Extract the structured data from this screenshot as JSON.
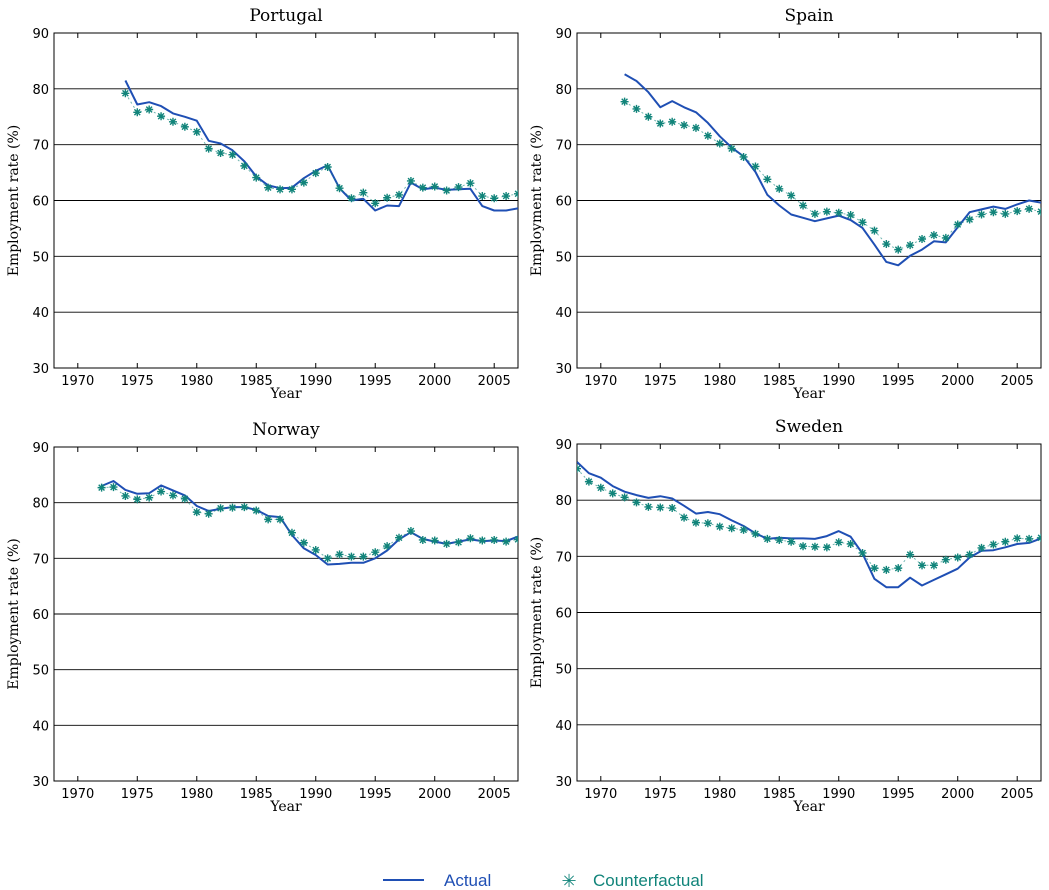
{
  "colors": {
    "actual": "#1f4fb4",
    "counterfactual": "#11847a",
    "grid": "#000000"
  },
  "legend": {
    "actual_label": "Actual",
    "counterfactual_label": "Counterfactual"
  },
  "chart_data": [
    {
      "type": "line",
      "title": "Portugal",
      "xlabel": "Year",
      "ylabel": "Employment rate (%)",
      "xlim": [
        1968,
        2007
      ],
      "ylim": [
        30,
        90
      ],
      "xticks": [
        1970,
        1975,
        1980,
        1985,
        1990,
        1995,
        2000,
        2005
      ],
      "yticks": [
        30,
        40,
        50,
        60,
        70,
        80,
        90
      ],
      "grid": "horizontal",
      "series": [
        {
          "name": "Actual",
          "style": "line",
          "x": [
            1974,
            1975,
            1976,
            1977,
            1978,
            1979,
            1980,
            1981,
            1982,
            1983,
            1984,
            1985,
            1986,
            1987,
            1988,
            1989,
            1990,
            1991,
            1992,
            1993,
            1994,
            1995,
            1996,
            1997,
            1998,
            1999,
            2000,
            2001,
            2002,
            2003,
            2004,
            2005,
            2006,
            2007
          ],
          "y": [
            81.5,
            77.2,
            77.6,
            76.9,
            75.6,
            75.0,
            74.3,
            70.7,
            70.2,
            69.0,
            67.0,
            64.3,
            62.7,
            62.2,
            62.3,
            64.0,
            65.3,
            66.3,
            62.2,
            60.0,
            60.3,
            58.2,
            59.1,
            59.0,
            63.2,
            62.0,
            62.3,
            61.9,
            62.0,
            62.1,
            59.0,
            58.2,
            58.2,
            58.6
          ]
        },
        {
          "name": "Counterfactual",
          "style": "markers",
          "x": [
            1974,
            1975,
            1976,
            1977,
            1978,
            1979,
            1980,
            1981,
            1982,
            1983,
            1984,
            1985,
            1986,
            1987,
            1988,
            1989,
            1990,
            1991,
            1992,
            1993,
            1994,
            1995,
            1996,
            1997,
            1998,
            1999,
            2000,
            2001,
            2002,
            2003,
            2004,
            2005,
            2006,
            2007
          ],
          "y": [
            79.2,
            75.8,
            76.3,
            75.1,
            74.1,
            73.2,
            72.3,
            69.3,
            68.5,
            68.2,
            66.2,
            64.1,
            62.3,
            62.0,
            62.0,
            63.2,
            64.9,
            66.0,
            62.2,
            60.4,
            61.4,
            59.5,
            60.5,
            61.0,
            63.5,
            62.3,
            62.5,
            61.8,
            62.4,
            63.1,
            60.8,
            60.4,
            60.8,
            61.2
          ]
        }
      ]
    },
    {
      "type": "line",
      "title": "Spain",
      "xlabel": "Year",
      "ylabel": "Employment rate (%)",
      "xlim": [
        1968,
        2007
      ],
      "ylim": [
        30,
        90
      ],
      "xticks": [
        1970,
        1975,
        1980,
        1985,
        1990,
        1995,
        2000,
        2005
      ],
      "yticks": [
        30,
        40,
        50,
        60,
        70,
        80,
        90
      ],
      "grid": "horizontal",
      "series": [
        {
          "name": "Actual",
          "style": "line",
          "x": [
            1972,
            1973,
            1974,
            1975,
            1976,
            1977,
            1978,
            1979,
            1980,
            1981,
            1982,
            1983,
            1984,
            1985,
            1986,
            1987,
            1988,
            1989,
            1990,
            1991,
            1992,
            1993,
            1994,
            1995,
            1996,
            1997,
            1998,
            1999,
            2000,
            2001,
            2002,
            2003,
            2004,
            2005,
            2006,
            2007
          ],
          "y": [
            82.6,
            81.4,
            79.4,
            76.7,
            77.8,
            76.7,
            75.8,
            73.9,
            71.5,
            69.5,
            67.9,
            65.1,
            61.0,
            59.1,
            57.5,
            56.9,
            56.3,
            56.8,
            57.3,
            56.5,
            55.1,
            52.1,
            49.0,
            48.4,
            50.1,
            51.2,
            52.7,
            52.5,
            55.2,
            57.9,
            58.4,
            58.9,
            58.5,
            59.3,
            60.0,
            59.6
          ]
        },
        {
          "name": "Counterfactual",
          "style": "markers",
          "x": [
            1972,
            1973,
            1974,
            1975,
            1976,
            1977,
            1978,
            1979,
            1980,
            1981,
            1982,
            1983,
            1984,
            1985,
            1986,
            1987,
            1988,
            1989,
            1990,
            1991,
            1992,
            1993,
            1994,
            1995,
            1996,
            1997,
            1998,
            1999,
            2000,
            2001,
            2002,
            2003,
            2004,
            2005,
            2006,
            2007
          ],
          "y": [
            77.7,
            76.4,
            75.0,
            73.8,
            74.1,
            73.5,
            73.0,
            71.6,
            70.2,
            69.3,
            67.8,
            66.1,
            63.8,
            62.1,
            60.9,
            59.1,
            57.6,
            58.0,
            57.8,
            57.4,
            56.1,
            54.6,
            52.2,
            51.2,
            52.0,
            53.1,
            53.8,
            53.3,
            55.7,
            56.6,
            57.5,
            57.9,
            57.6,
            58.1,
            58.5,
            58.0
          ]
        }
      ]
    },
    {
      "type": "line",
      "title": "Norway",
      "xlabel": "Year",
      "ylabel": "Employment rate (%)",
      "xlim": [
        1968,
        2007
      ],
      "ylim": [
        30,
        90
      ],
      "xticks": [
        1970,
        1975,
        1980,
        1985,
        1990,
        1995,
        2000,
        2005
      ],
      "yticks": [
        30,
        40,
        50,
        60,
        70,
        80,
        90
      ],
      "grid": "horizontal",
      "series": [
        {
          "name": "Actual",
          "style": "line",
          "x": [
            1972,
            1973,
            1974,
            1975,
            1976,
            1977,
            1978,
            1979,
            1980,
            1981,
            1982,
            1983,
            1984,
            1985,
            1986,
            1987,
            1988,
            1989,
            1990,
            1991,
            1992,
            1993,
            1994,
            1995,
            1996,
            1997,
            1998,
            1999,
            2000,
            2001,
            2002,
            2003,
            2004,
            2005,
            2006,
            2007
          ],
          "y": [
            83.0,
            83.9,
            82.3,
            81.6,
            81.7,
            83.1,
            82.2,
            81.3,
            79.4,
            78.5,
            78.9,
            79.2,
            79.2,
            78.7,
            77.6,
            77.4,
            74.2,
            71.8,
            70.6,
            68.9,
            69.0,
            69.2,
            69.2,
            70.0,
            71.4,
            73.4,
            74.7,
            73.5,
            73.0,
            72.6,
            73.0,
            73.4,
            73.1,
            73.2,
            73.1,
            73.9
          ]
        },
        {
          "name": "Counterfactual",
          "style": "markers",
          "x": [
            1972,
            1973,
            1974,
            1975,
            1976,
            1977,
            1978,
            1979,
            1980,
            1981,
            1982,
            1983,
            1984,
            1985,
            1986,
            1987,
            1988,
            1989,
            1990,
            1991,
            1992,
            1993,
            1994,
            1995,
            1996,
            1997,
            1998,
            1999,
            2000,
            2001,
            2002,
            2003,
            2004,
            2005,
            2006,
            2007
          ],
          "y": [
            82.7,
            82.8,
            81.2,
            80.6,
            80.9,
            82.0,
            81.3,
            80.7,
            78.3,
            78.0,
            79.0,
            79.1,
            79.2,
            78.6,
            77.0,
            77.0,
            74.6,
            72.8,
            71.5,
            70.0,
            70.7,
            70.3,
            70.3,
            71.1,
            72.2,
            73.7,
            74.9,
            73.3,
            73.2,
            72.6,
            72.9,
            73.6,
            73.2,
            73.3,
            73.0,
            73.4
          ]
        }
      ]
    },
    {
      "type": "line",
      "title": "Sweden",
      "xlabel": "Year",
      "ylabel": "Employment rate (%)",
      "xlim": [
        1968,
        2007
      ],
      "ylim": [
        30,
        90
      ],
      "xticks": [
        1970,
        1975,
        1980,
        1985,
        1990,
        1995,
        2000,
        2005
      ],
      "yticks": [
        30,
        40,
        50,
        60,
        70,
        80,
        90
      ],
      "grid": "horizontal",
      "series": [
        {
          "name": "Actual",
          "style": "line",
          "x": [
            1968,
            1969,
            1970,
            1971,
            1972,
            1973,
            1974,
            1975,
            1976,
            1977,
            1978,
            1979,
            1980,
            1981,
            1982,
            1983,
            1984,
            1985,
            1986,
            1987,
            1988,
            1989,
            1990,
            1991,
            1992,
            1993,
            1994,
            1995,
            1996,
            1997,
            1998,
            1999,
            2000,
            2001,
            2002,
            2003,
            2004,
            2005,
            2006,
            2007
          ],
          "y": [
            86.8,
            84.8,
            84.0,
            82.5,
            81.5,
            80.9,
            80.4,
            80.7,
            80.3,
            79.0,
            77.6,
            77.9,
            77.5,
            76.4,
            75.4,
            74.1,
            73.1,
            73.3,
            73.2,
            73.2,
            73.1,
            73.6,
            74.5,
            73.5,
            70.5,
            66.0,
            64.5,
            64.5,
            66.2,
            64.8,
            65.8,
            66.8,
            67.8,
            69.8,
            71.0,
            71.1,
            71.6,
            72.2,
            72.4,
            73.2
          ]
        },
        {
          "name": "Counterfactual",
          "style": "markers",
          "x": [
            1968,
            1969,
            1970,
            1971,
            1972,
            1973,
            1974,
            1975,
            1976,
            1977,
            1978,
            1979,
            1980,
            1981,
            1982,
            1983,
            1984,
            1985,
            1986,
            1987,
            1988,
            1989,
            1990,
            1991,
            1992,
            1993,
            1994,
            1995,
            1996,
            1997,
            1998,
            1999,
            2000,
            2001,
            2002,
            2003,
            2004,
            2005,
            2006,
            2007
          ],
          "y": [
            85.6,
            83.3,
            82.2,
            81.2,
            80.5,
            79.6,
            78.8,
            78.7,
            78.6,
            76.9,
            76.0,
            75.9,
            75.3,
            75.0,
            74.7,
            74.0,
            73.1,
            72.9,
            72.6,
            71.8,
            71.7,
            71.6,
            72.5,
            72.2,
            70.6,
            67.9,
            67.6,
            67.9,
            70.3,
            68.4,
            68.4,
            69.4,
            69.8,
            70.3,
            71.5,
            72.1,
            72.6,
            73.2,
            73.1,
            73.3
          ]
        }
      ]
    }
  ]
}
